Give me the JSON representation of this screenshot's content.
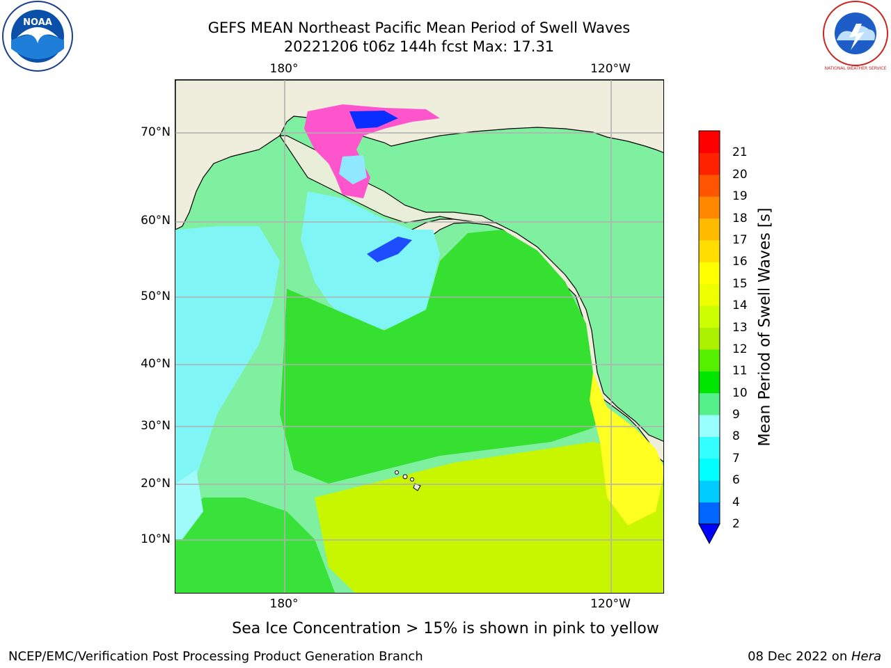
{
  "title_line1": "GEFS MEAN Northeast Pacific Mean Period of Swell Waves",
  "title_line2": "20221206 t06z 144h fcst   Max: 17.31",
  "lat_labels": [
    "70°N",
    "60°N",
    "50°N",
    "40°N",
    "30°N",
    "20°N",
    "10°N"
  ],
  "lon_labels_top": [
    "180°",
    "120°W"
  ],
  "lon_labels_bottom": [
    "180°",
    "120°W"
  ],
  "colorbar": {
    "label": "Mean Period of Swell Waves [s]",
    "ticks": [
      "2",
      "4",
      "6",
      "7",
      "8",
      "9",
      "10",
      "11",
      "12",
      "13",
      "14",
      "15",
      "16",
      "17",
      "18",
      "19",
      "20",
      "21"
    ],
    "colors": [
      "#0066ff",
      "#00ccff",
      "#00ffff",
      "#33ffff",
      "#99ffff",
      "#55f08a",
      "#00e600",
      "#55f000",
      "#aaf000",
      "#ccff00",
      "#eeff00",
      "#ffff00",
      "#ffdd00",
      "#ffbb00",
      "#ff8800",
      "#ff5500",
      "#ff2200",
      "#ff0000"
    ],
    "extend_color": "#0000ff"
  },
  "logos": {
    "noaa_text": "NOAA",
    "nws_text": "NATIONAL WEATHER SERVICE"
  },
  "caption": "Sea Ice Concentration > 15% is shown in pink to yellow",
  "footer_left": "NCEP/EMC/Verification Post Processing Product Generation Branch",
  "footer_right_prefix": "08 Dec 2022 on ",
  "footer_right_host": "Hera",
  "colors": {
    "land": "#efeedd",
    "grid": "#b0b0b0",
    "ice": "#ff55cc"
  }
}
